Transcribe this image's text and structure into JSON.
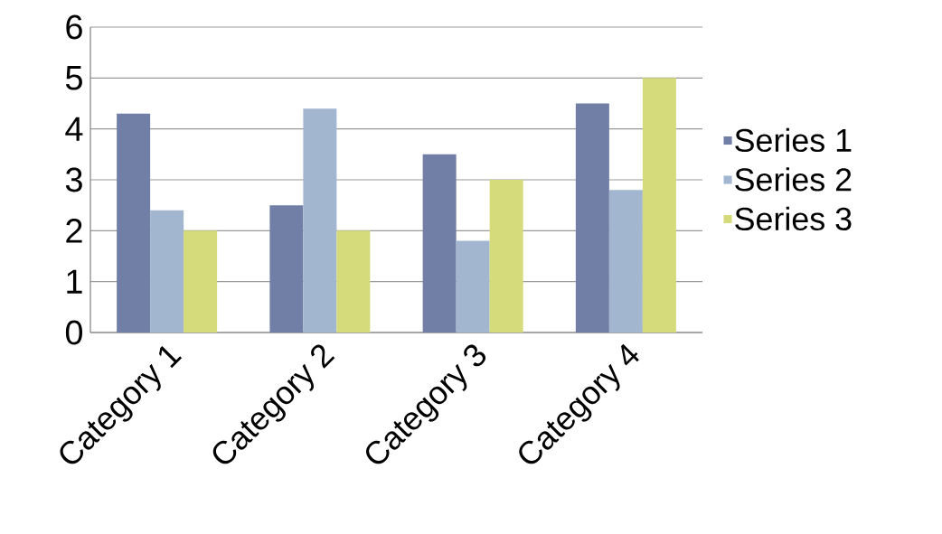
{
  "chart_data": {
    "type": "bar",
    "categories": [
      "Category 1",
      "Category 2",
      "Category 3",
      "Category 4"
    ],
    "series": [
      {
        "name": "Series 1",
        "color": "#717ea6",
        "values": [
          4.3,
          2.5,
          3.5,
          4.5
        ]
      },
      {
        "name": "Series 2",
        "color": "#a2b7cf",
        "values": [
          2.4,
          4.4,
          1.8,
          2.8
        ]
      },
      {
        "name": "Series 3",
        "color": "#d5db7b",
        "values": [
          2,
          2,
          3,
          5
        ]
      }
    ],
    "ylim": [
      0,
      6
    ],
    "yticks": [
      0,
      1,
      2,
      3,
      4,
      5,
      6
    ],
    "grid": "y",
    "legend": "right"
  }
}
